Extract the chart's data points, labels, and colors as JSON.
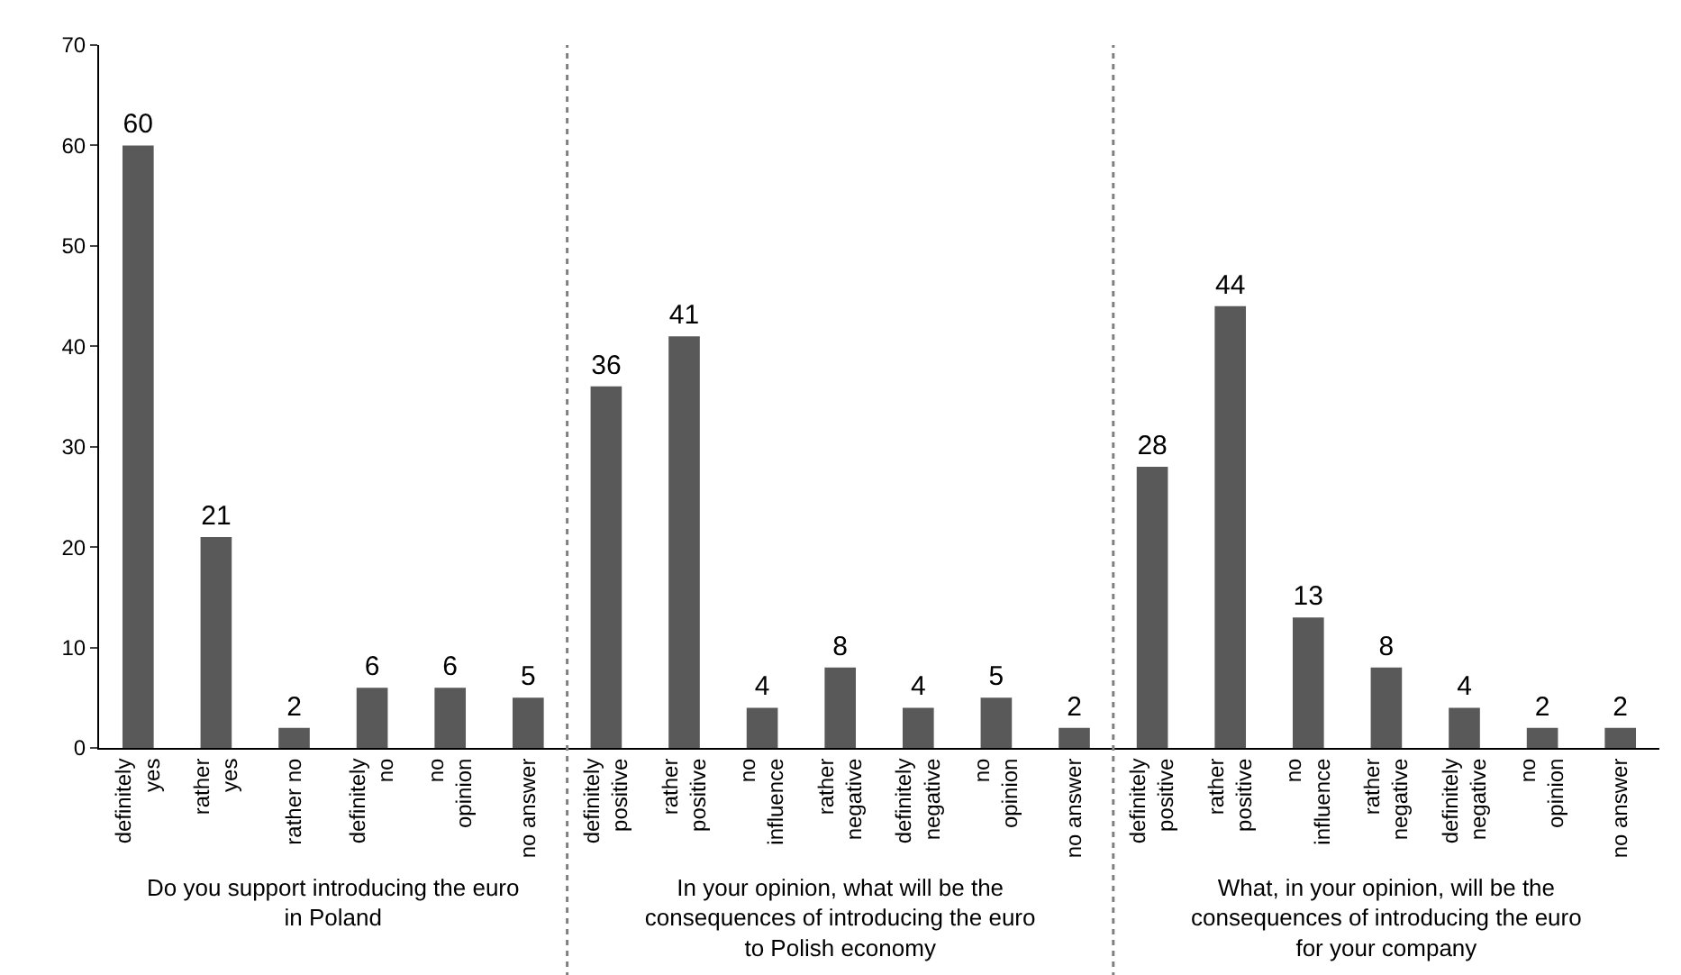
{
  "chart_data": [
    {
      "type": "bar",
      "categories": [
        "definitely yes",
        "rather yes",
        "rather no",
        "definitely no",
        "no opinion",
        "no answer"
      ],
      "values": [
        60,
        21,
        2,
        6,
        6,
        5
      ],
      "color": "#595959",
      "data_labels": true,
      "xlabel": "Do you support introducing the euro in Poland",
      "ylim": [
        0,
        70
      ],
      "yticks": [
        0,
        10,
        20,
        30,
        40,
        50,
        60,
        70
      ]
    },
    {
      "type": "bar",
      "categories": [
        "definitely positive",
        "rather positive",
        "no influence",
        "rather negative",
        "definitely negative",
        "no opinion",
        "no answer"
      ],
      "values": [
        36,
        41,
        4,
        8,
        4,
        5,
        2
      ],
      "color": "#595959",
      "data_labels": true,
      "xlabel": "In your opinion, what will be the consequences of introducing the euro to Polish economy",
      "ylim": [
        0,
        70
      ],
      "tick_labels": "x"
    },
    {
      "type": "bar",
      "categories": [
        "definitely positive",
        "rather positive",
        "no influence",
        "rather negative",
        "definitely negative",
        "no opinion",
        "no answer"
      ],
      "values": [
        28,
        44,
        13,
        8,
        4,
        2,
        2
      ],
      "color": "#595959",
      "data_labels": true,
      "xlabel": "What, in your opinion, will be the consequences of introducing the euro for your company",
      "ylim": [
        0,
        70
      ],
      "tick_labels": "x"
    }
  ]
}
